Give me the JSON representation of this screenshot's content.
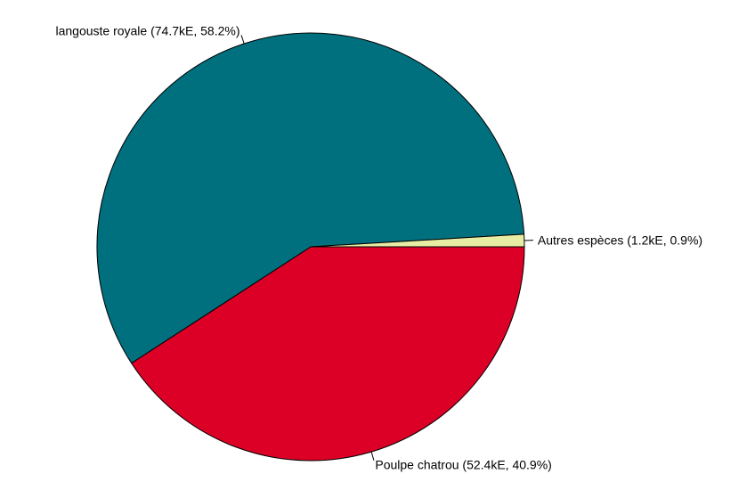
{
  "chart_data": {
    "type": "pie",
    "title": "",
    "slices": [
      {
        "name": "Poulpe chatrou",
        "value": 52.4,
        "percent": 40.9,
        "label": "Poulpe chatrou (52.4kE, 40.9%)",
        "color": "#dc0026"
      },
      {
        "name": "langouste royale",
        "value": 74.7,
        "percent": 58.2,
        "label": "langouste royale (74.7kE, 58.2%)",
        "color": "#00707e"
      },
      {
        "name": "Autres espèces",
        "value": 1.2,
        "percent": 0.9,
        "label": "Autres espèces (1.2kE, 0.9%)",
        "color": "#e8eda4"
      }
    ],
    "start_angle_deg": 0,
    "direction": "clockwise"
  }
}
